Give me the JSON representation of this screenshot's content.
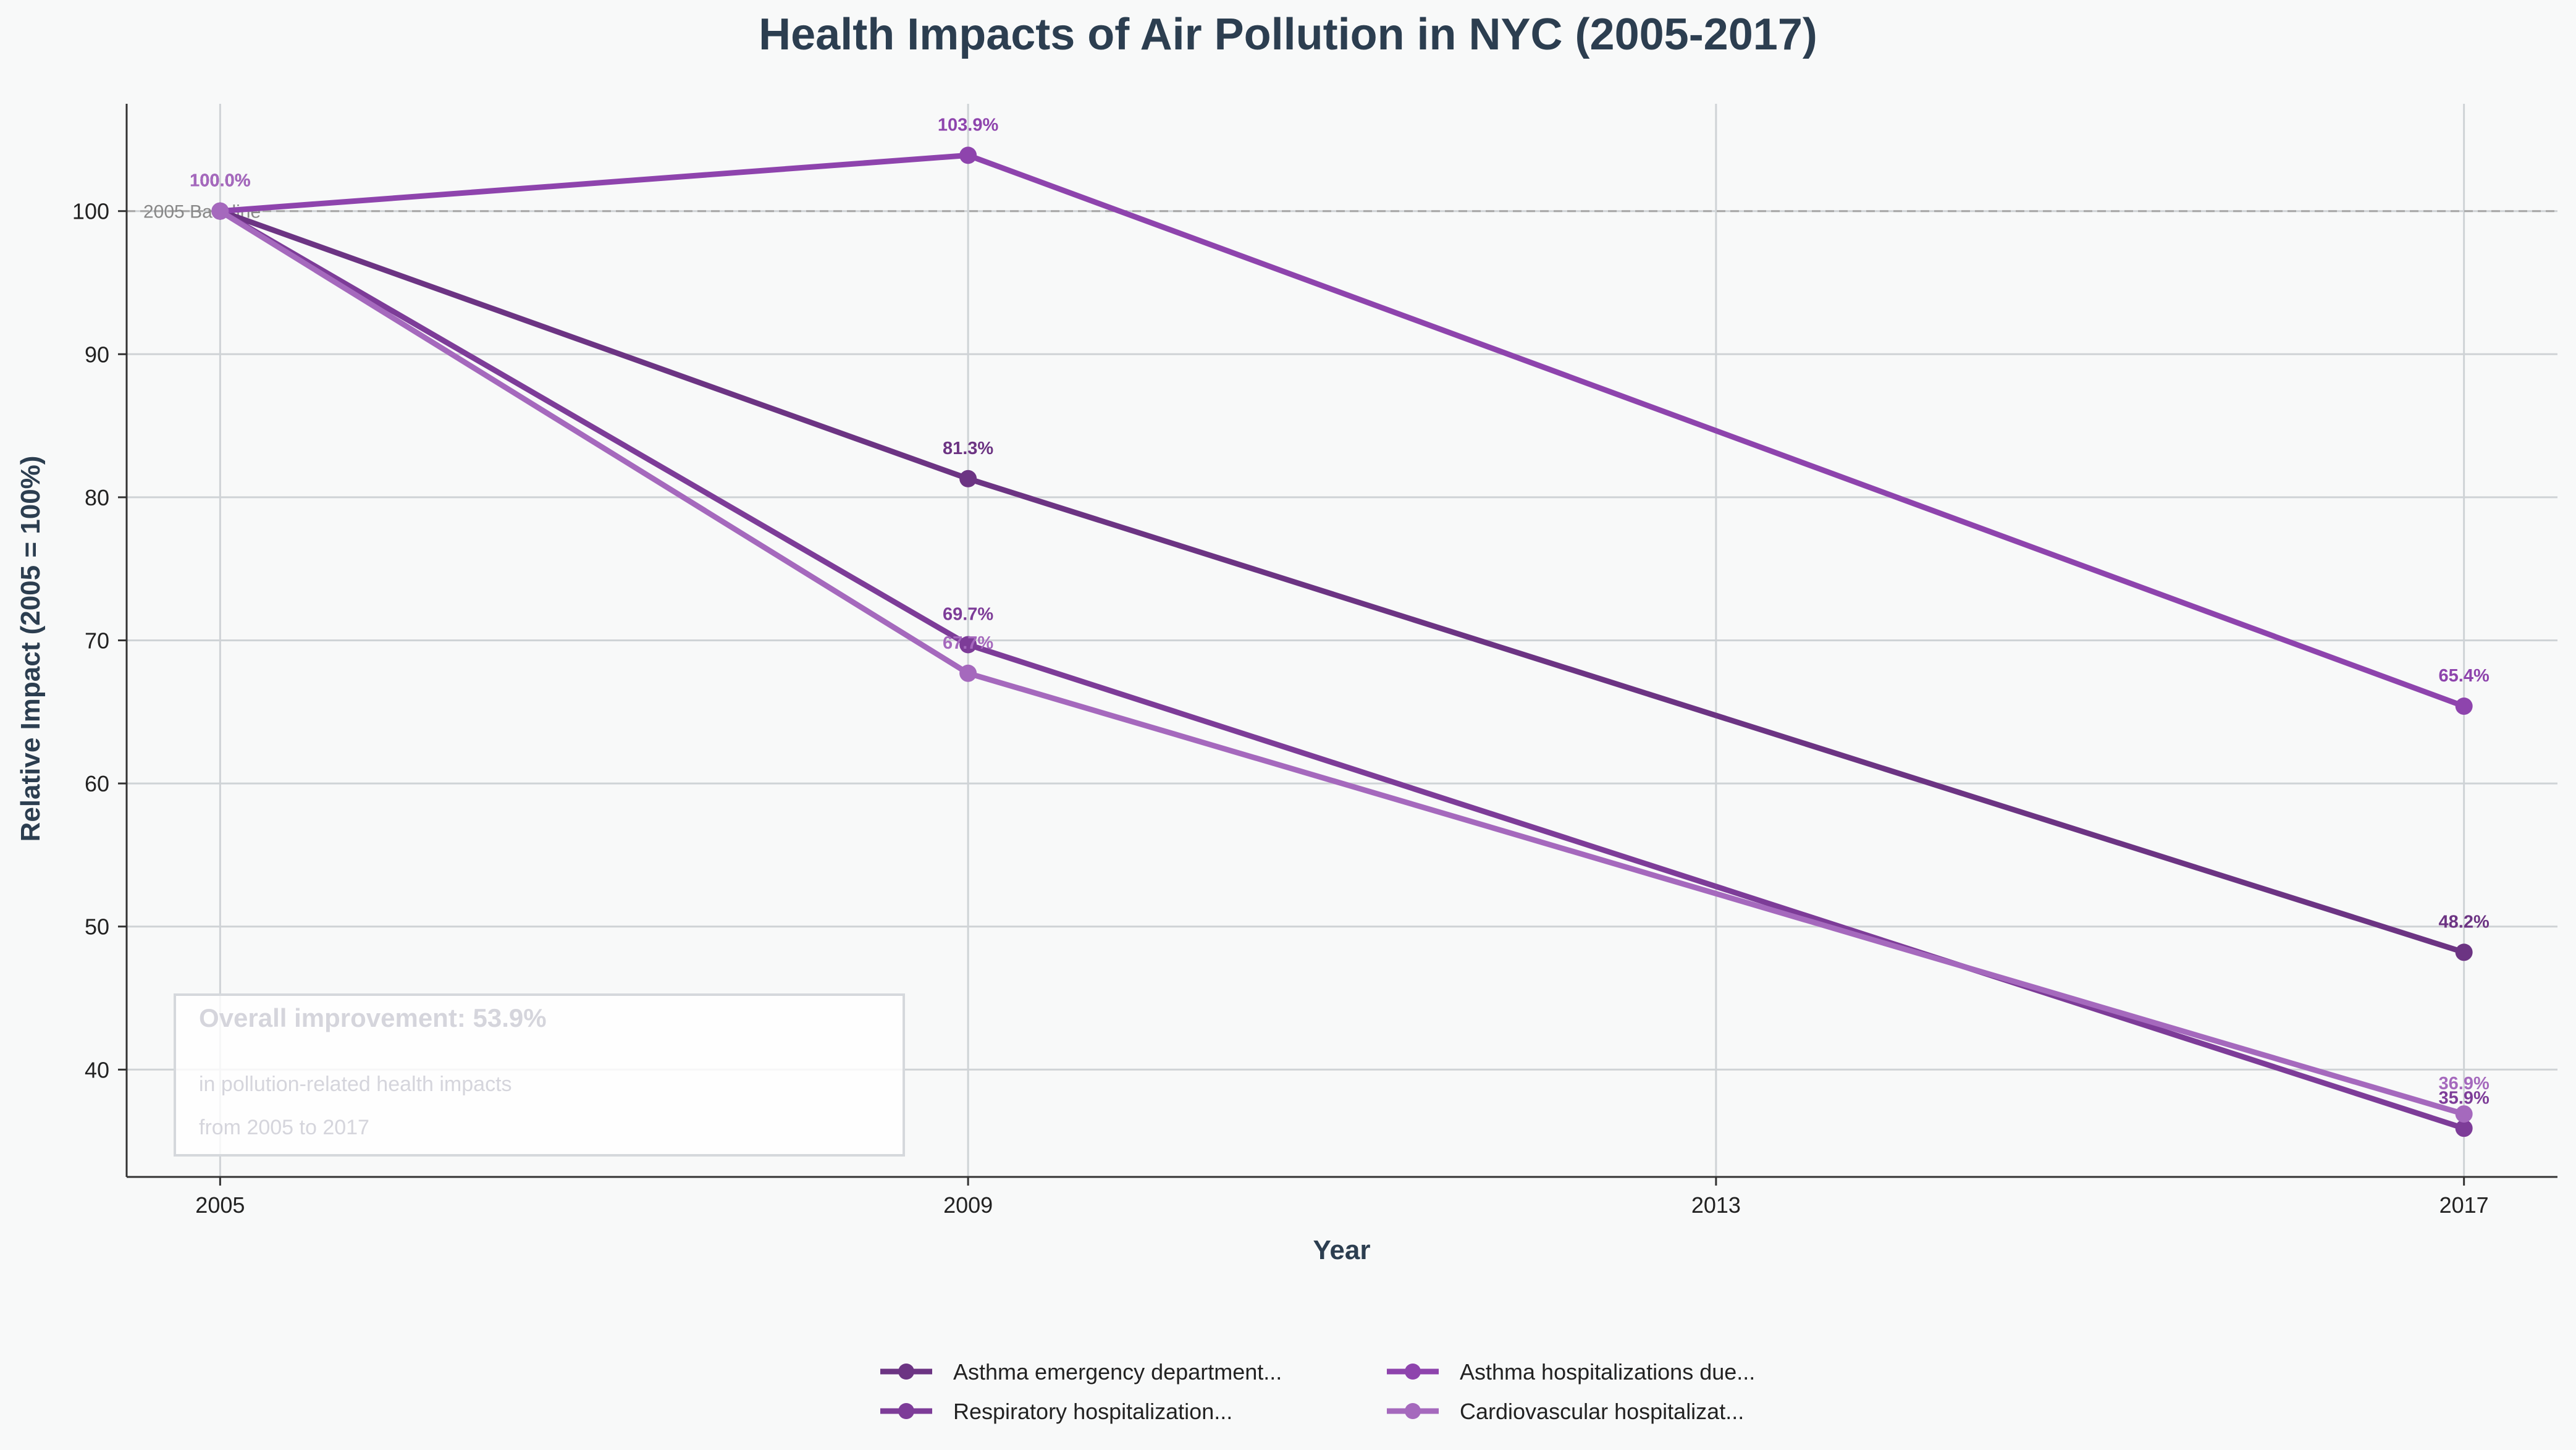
{
  "chart_data": {
    "type": "line",
    "title": "Health Impacts of Air Pollution in NYC (2005-2017)",
    "xlabel": "Year",
    "ylabel": "Relative Impact (2005 = 100%)",
    "x": [
      2005,
      2009,
      2017
    ],
    "x_ticks": [
      "2005",
      "2009",
      "2013",
      "2017"
    ],
    "xlim": [
      2004.5,
      2017.5
    ],
    "ylim": [
      32.5,
      107.5
    ],
    "y_ticks": [
      40,
      50,
      60,
      70,
      80,
      90,
      100
    ],
    "grid": true,
    "legend_position": "bottom-center",
    "baseline": {
      "value": 100,
      "label": "2005 Baseline"
    },
    "series": [
      {
        "name": "Asthma emergency department...",
        "color": "#6c3483",
        "values": [
          100.0,
          81.3,
          48.2
        ],
        "labels": [
          "100.0%",
          "81.3%",
          "48.2%"
        ]
      },
      {
        "name": "Asthma hospitalizations due...",
        "color": "#8e44ad",
        "values": [
          100.0,
          103.9,
          65.4
        ],
        "labels": [
          "100.0%",
          "103.9%",
          "65.4%"
        ]
      },
      {
        "name": "Respiratory hospitalization...",
        "color": "#7d3c98",
        "values": [
          100.0,
          69.7,
          35.9
        ],
        "labels": [
          "100.0%",
          "69.7%",
          "35.9%"
        ]
      },
      {
        "name": "Cardiovascular hospitalizat...",
        "color": "#a569bd",
        "values": [
          100.0,
          67.7,
          36.9
        ],
        "labels": [
          "100.0%",
          "67.7%",
          "36.9%"
        ]
      }
    ],
    "annotation": {
      "title": "Overall improvement: 53.9%",
      "line1": "in pollution-related health impacts",
      "line2": "from 2005 to 2017"
    }
  }
}
